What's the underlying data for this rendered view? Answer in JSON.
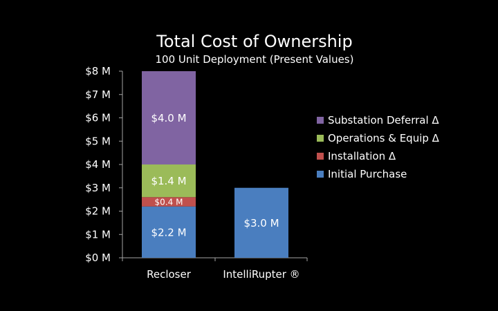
{
  "chart_data": {
    "type": "bar",
    "stacked": true,
    "title": "Total Cost of Ownership",
    "subtitle": "100 Unit Deployment (Present Values)",
    "xlabel": "",
    "ylabel": "",
    "categories": [
      "Recloser",
      "IntelliRupter ®"
    ],
    "ylim": [
      0,
      8
    ],
    "yticks": [
      0,
      1,
      2,
      3,
      4,
      5,
      6,
      7,
      8
    ],
    "ytick_labels": [
      "$0 M",
      "$1 M",
      "$2 M",
      "$3 M",
      "$4 M",
      "$5 M",
      "$6 M",
      "$7 M",
      "$8 M"
    ],
    "grid": false,
    "legend_position": "right",
    "series": [
      {
        "name": "Initial Purchase",
        "color": "#4a7ebf",
        "values": [
          2.2,
          3.0
        ],
        "labels": [
          "$2.2 M",
          "$3.0 M"
        ]
      },
      {
        "name": "Installation Δ",
        "color": "#c0504d",
        "values": [
          0.4,
          0
        ],
        "labels": [
          "$0.4 M",
          ""
        ]
      },
      {
        "name": "Operations & Equip Δ",
        "color": "#9bbb59",
        "values": [
          1.4,
          0
        ],
        "labels": [
          "$1.4 M",
          ""
        ]
      },
      {
        "name": "Substation Deferral Δ",
        "color": "#8064a2",
        "values": [
          4.0,
          0
        ],
        "labels": [
          "$4.0 M",
          ""
        ]
      }
    ]
  }
}
